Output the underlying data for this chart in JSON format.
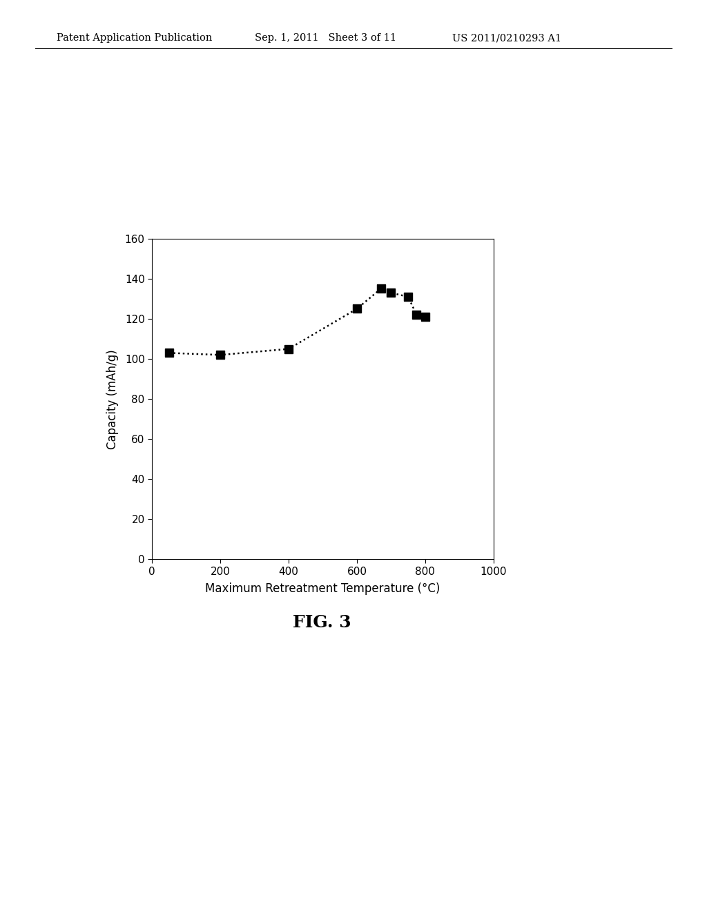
{
  "x_data": [
    50,
    200,
    400,
    600,
    670,
    700,
    750,
    775,
    800
  ],
  "y_data": [
    103,
    102,
    105,
    125,
    135,
    133,
    131,
    122,
    121
  ],
  "xlabel": "Maximum Retreatment Temperature (°C)",
  "ylabel": "Capacity (mAh/g)",
  "fig_label": "FIG. 3",
  "header_left": "Patent Application Publication",
  "header_mid": "Sep. 1, 2011   Sheet 3 of 11",
  "header_right": "US 2011/0210293 A1",
  "xlim": [
    0,
    1000
  ],
  "ylim": [
    0,
    160
  ],
  "xticks": [
    0,
    200,
    400,
    600,
    800,
    1000
  ],
  "yticks": [
    0,
    20,
    40,
    60,
    80,
    100,
    120,
    140,
    160
  ],
  "marker_color": "black",
  "marker_size": 9,
  "line_color": "black",
  "background_color": "white",
  "plot_area_color": "white"
}
